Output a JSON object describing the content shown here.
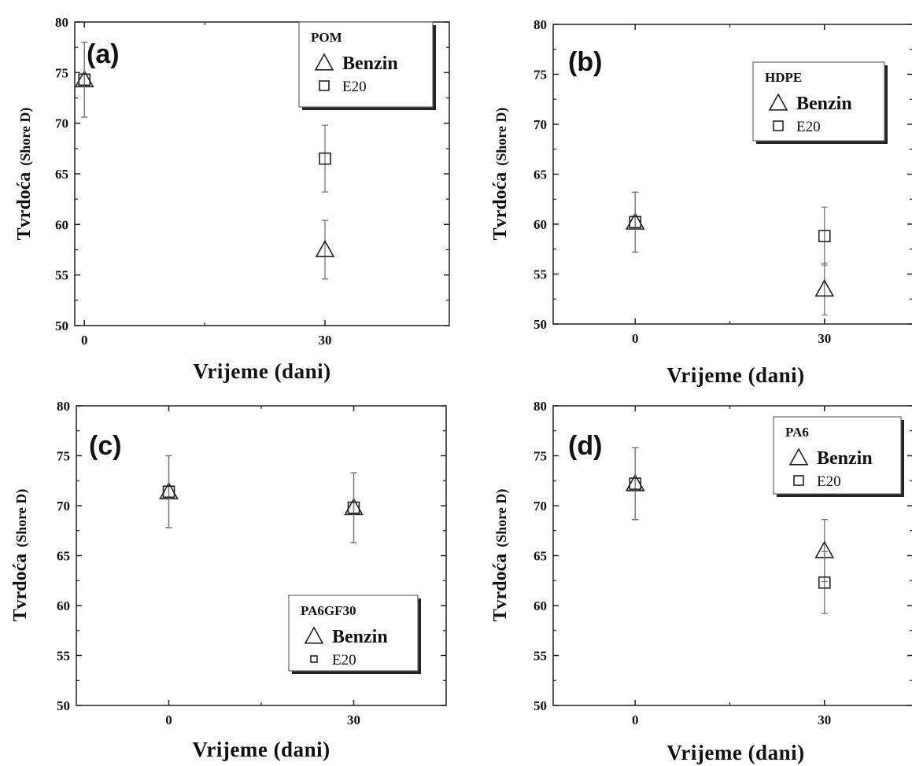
{
  "chart_data": [
    {
      "type": "scatter",
      "panel_label": "(a)",
      "legend_title": "POM",
      "xlabel": "Vrijeme (dani)",
      "ylabel": "Tvrdoća",
      "ylabel_unit": "(Shore D)",
      "ylim": [
        50,
        80
      ],
      "yticks": [
        "50",
        "55",
        "60",
        "65",
        "70",
        "75",
        "80"
      ],
      "xticks": [
        "0",
        "30"
      ],
      "legend_position": "top-right",
      "series": [
        {
          "name": "Benzin",
          "marker": "triangle",
          "points": [
            {
              "x": 0,
              "y": 74.3,
              "err": 3.7
            },
            {
              "x": 30,
              "y": 57.5,
              "err": 2.9
            }
          ]
        },
        {
          "name": "E20",
          "marker": "square",
          "points": [
            {
              "x": 0,
              "y": 74.3,
              "err": 3.7
            },
            {
              "x": 30,
              "y": 66.5,
              "err": 3.3
            }
          ]
        }
      ]
    },
    {
      "type": "scatter",
      "panel_label": "(b)",
      "legend_title": "HDPE",
      "xlabel": "Vrijeme (dani)",
      "ylabel": "Tvrdoća",
      "ylabel_unit": "(Shore D)",
      "ylim": [
        50,
        80
      ],
      "yticks": [
        "50",
        "55",
        "60",
        "65",
        "70",
        "75",
        "80"
      ],
      "xticks": [
        "0",
        "30"
      ],
      "legend_position": "top-right",
      "series": [
        {
          "name": "Benzin",
          "marker": "triangle",
          "points": [
            {
              "x": 0,
              "y": 60.2,
              "err": 3.0
            },
            {
              "x": 30,
              "y": 53.5,
              "err": 2.6
            }
          ]
        },
        {
          "name": "E20",
          "marker": "square",
          "points": [
            {
              "x": 0,
              "y": 60.2,
              "err": 3.0
            },
            {
              "x": 30,
              "y": 58.8,
              "err": 2.9
            }
          ]
        }
      ]
    },
    {
      "type": "scatter",
      "panel_label": "(c)",
      "legend_title": "PA6GF30",
      "xlabel": "Vrijeme (dani)",
      "ylabel": "Tvrdoća",
      "ylabel_unit": "(Shore D)",
      "ylim": [
        50,
        80
      ],
      "yticks": [
        "50",
        "55",
        "60",
        "65",
        "70",
        "75",
        "80"
      ],
      "xticks": [
        "0",
        "30"
      ],
      "legend_position": "bottom-right",
      "series": [
        {
          "name": "Benzin",
          "marker": "triangle",
          "points": [
            {
              "x": 0,
              "y": 71.4,
              "err": 3.6
            },
            {
              "x": 30,
              "y": 69.8,
              "err": 3.5
            }
          ]
        },
        {
          "name": "E20",
          "marker": "square",
          "points": [
            {
              "x": 0,
              "y": 71.4,
              "err": 3.6
            },
            {
              "x": 30,
              "y": 69.8,
              "err": 3.5
            }
          ]
        }
      ]
    },
    {
      "type": "scatter",
      "panel_label": "(d)",
      "legend_title": "PA6",
      "xlabel": "Vrijeme (dani)",
      "ylabel": "Tvrdoća",
      "ylabel_unit": "(Shore D)",
      "ylim": [
        50,
        80
      ],
      "yticks": [
        "50",
        "55",
        "60",
        "65",
        "70",
        "75",
        "80"
      ],
      "xticks": [
        "0",
        "30"
      ],
      "legend_position": "top-right",
      "series": [
        {
          "name": "Benzin",
          "marker": "triangle",
          "points": [
            {
              "x": 0,
              "y": 72.2,
              "err": 3.6
            },
            {
              "x": 30,
              "y": 65.5,
              "err": 3.1
            }
          ]
        },
        {
          "name": "E20",
          "marker": "square",
          "points": [
            {
              "x": 0,
              "y": 72.2,
              "err": 3.6
            },
            {
              "x": 30,
              "y": 62.3,
              "err": 3.1
            }
          ]
        }
      ]
    }
  ]
}
